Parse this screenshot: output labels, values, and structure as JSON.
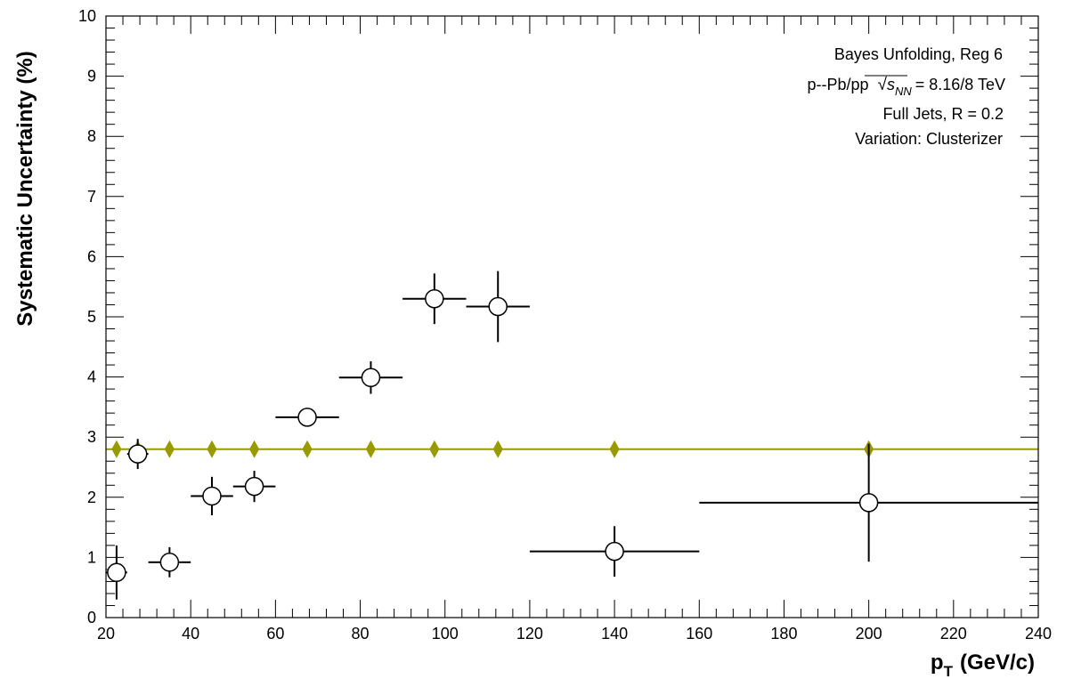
{
  "chart_data": {
    "type": "scatter",
    "title": "",
    "xlabel": "p_T (GeV/c)",
    "xlabel_main": "p",
    "xlabel_sub": "T",
    "xlabel_unit": "(GeV/c)",
    "ylabel": "Systematic Uncertainty (%)",
    "xlim": [
      20,
      240
    ],
    "ylim": [
      0,
      10
    ],
    "x_ticks": [
      "20",
      "40",
      "60",
      "80",
      "100",
      "120",
      "140",
      "160",
      "180",
      "200",
      "220",
      "240"
    ],
    "y_ticks": [
      "0",
      "1",
      "2",
      "3",
      "4",
      "5",
      "6",
      "7",
      "8",
      "9",
      "10"
    ],
    "grid": false,
    "legend_placement": "top-right",
    "annotations": {
      "line1": "Bayes Unfolding, Reg 6",
      "line2_prefix": "p--Pb/pp",
      "line2_sqrt_s": "s",
      "line2_sqrt_sub": "NN",
      "line2_suffix": "= 8.16/8 TeV",
      "line3": "Full Jets, R = 0.2",
      "line4": "Variation: Clusterizer"
    },
    "series": [
      {
        "marker": "open-circle",
        "color": "#000000",
        "points": [
          {
            "x": 22.5,
            "y": 0.75,
            "xerr": 2.5,
            "yerr": 0.45
          },
          {
            "x": 27.5,
            "y": 2.72,
            "xerr": 2.5,
            "yerr": 0.25
          },
          {
            "x": 35,
            "y": 0.92,
            "xerr": 5,
            "yerr": 0.25
          },
          {
            "x": 45,
            "y": 2.02,
            "xerr": 5,
            "yerr": 0.32
          },
          {
            "x": 55,
            "y": 2.18,
            "xerr": 5,
            "yerr": 0.26
          },
          {
            "x": 67.5,
            "y": 3.33,
            "xerr": 7.5,
            "yerr": 0.0
          },
          {
            "x": 82.5,
            "y": 3.99,
            "xerr": 7.5,
            "yerr": 0.27
          },
          {
            "x": 97.5,
            "y": 5.3,
            "xerr": 7.5,
            "yerr": 0.42
          },
          {
            "x": 112.5,
            "y": 5.17,
            "xerr": 7.5,
            "yerr": 0.59
          },
          {
            "x": 140,
            "y": 1.1,
            "xerr": 20,
            "yerr": 0.42
          },
          {
            "x": 200,
            "y": 1.91,
            "xerr": 40,
            "yerr": 0.98
          }
        ]
      },
      {
        "marker": "diamond",
        "color": "#999900",
        "line_y": 2.8,
        "points": [
          {
            "x": 22.5,
            "y": 2.8
          },
          {
            "x": 27.5,
            "y": 2.8
          },
          {
            "x": 35,
            "y": 2.8
          },
          {
            "x": 45,
            "y": 2.8
          },
          {
            "x": 55,
            "y": 2.8
          },
          {
            "x": 67.5,
            "y": 2.8
          },
          {
            "x": 82.5,
            "y": 2.8
          },
          {
            "x": 97.5,
            "y": 2.8
          },
          {
            "x": 112.5,
            "y": 2.8
          },
          {
            "x": 140,
            "y": 2.8
          },
          {
            "x": 200,
            "y": 2.8
          }
        ]
      }
    ]
  }
}
